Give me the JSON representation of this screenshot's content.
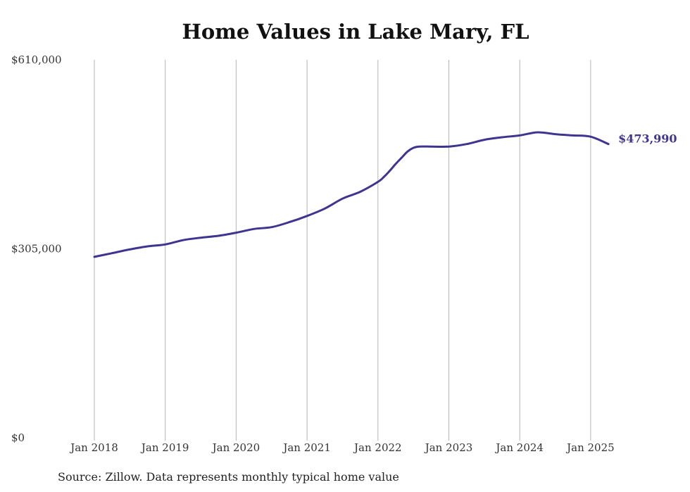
{
  "chart_data": {
    "type": "line",
    "title": "Home Values in Lake Mary, FL",
    "source": "Source: Zillow. Data represents monthly typical home value",
    "xlabel": "",
    "ylabel": "",
    "ylim": [
      0,
      610000
    ],
    "y_ticks": [
      {
        "value": 0,
        "label": "$0"
      },
      {
        "value": 305000,
        "label": "$305,000"
      },
      {
        "value": 610000,
        "label": "$610,000"
      }
    ],
    "x_ticks": [
      {
        "value": "2018-01",
        "label": "Jan 2018"
      },
      {
        "value": "2019-01",
        "label": "Jan 2019"
      },
      {
        "value": "2020-01",
        "label": "Jan 2020"
      },
      {
        "value": "2021-01",
        "label": "Jan 2021"
      },
      {
        "value": "2022-01",
        "label": "Jan 2022"
      },
      {
        "value": "2023-01",
        "label": "Jan 2023"
      },
      {
        "value": "2024-01",
        "label": "Jan 2024"
      },
      {
        "value": "2025-01",
        "label": "Jan 2025"
      }
    ],
    "grid": {
      "vertical": true,
      "horizontal": false
    },
    "line_color": "#3f3590",
    "grid_color": "#b5b5b5",
    "end_label": "$473,990",
    "series": [
      {
        "x": [
          "2018-01",
          "2018-04",
          "2018-07",
          "2018-10",
          "2019-01",
          "2019-04",
          "2019-07",
          "2019-10",
          "2020-01",
          "2020-04",
          "2020-07",
          "2020-10",
          "2021-01",
          "2021-04",
          "2021-07",
          "2021-10",
          "2022-01",
          "2022-02",
          "2022-03",
          "2022-04",
          "2022-05",
          "2022-06",
          "2022-07",
          "2022-08",
          "2022-10",
          "2023-01",
          "2023-04",
          "2023-07",
          "2023-10",
          "2024-01",
          "2024-04",
          "2024-07",
          "2024-10",
          "2025-01",
          "2025-04"
        ],
        "values": [
          292000,
          298000,
          304000,
          309000,
          312000,
          319000,
          323000,
          326000,
          331000,
          337000,
          340000,
          348000,
          358000,
          370000,
          386000,
          397000,
          413000,
          421000,
          431000,
          442000,
          452000,
          462000,
          468000,
          470000,
          470000,
          470000,
          474000,
          481000,
          485000,
          488000,
          493000,
          490000,
          488000,
          486000,
          473990
        ]
      }
    ]
  }
}
